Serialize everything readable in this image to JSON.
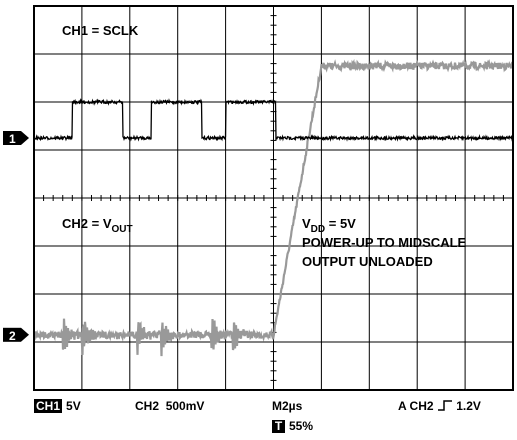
{
  "chart_data": {
    "type": "line",
    "title": "",
    "xlabel": "",
    "ylabel": "",
    "grid": true,
    "x_divisions": 10,
    "y_divisions": 8,
    "series": [
      {
        "name": "CH1 = SCLK",
        "channel_marker": "1",
        "color": "#000000",
        "pulses_div": [
          [
            0.8,
            1.85
          ],
          [
            2.45,
            3.5
          ],
          [
            4.0,
            5.05
          ]
        ],
        "low_level_div": 5.25,
        "high_level_div": 6.0
      },
      {
        "name": "CH2 = V",
        "subscript": "OUT",
        "channel_marker": "2",
        "color": "#999999",
        "baseline_div": 1.15,
        "ramp_start_div": 5.0,
        "ramp_end_div": 6.0,
        "final_level_div": 6.75,
        "transient_spikes_div": [
          0.6,
          1.0,
          2.15,
          2.65,
          3.7,
          4.15
        ]
      }
    ],
    "annotations": [
      {
        "text": "V",
        "sub": "DD",
        "rest": " = 5V"
      },
      {
        "text": "POWER-UP TO MIDSCALE"
      },
      {
        "text": "OUTPUT UNLOADED"
      }
    ]
  },
  "status_bar": {
    "ch1_badge": "CH1",
    "ch1_scale": "5V",
    "ch2_label": "CH2",
    "ch2_scale": "500mV",
    "timebase": "M2µs",
    "trigger": "A  CH2",
    "trigger_slope_icon": "rising-edge-icon",
    "trigger_level": "1.2V",
    "t_badge": "T",
    "t_position": "55%"
  }
}
